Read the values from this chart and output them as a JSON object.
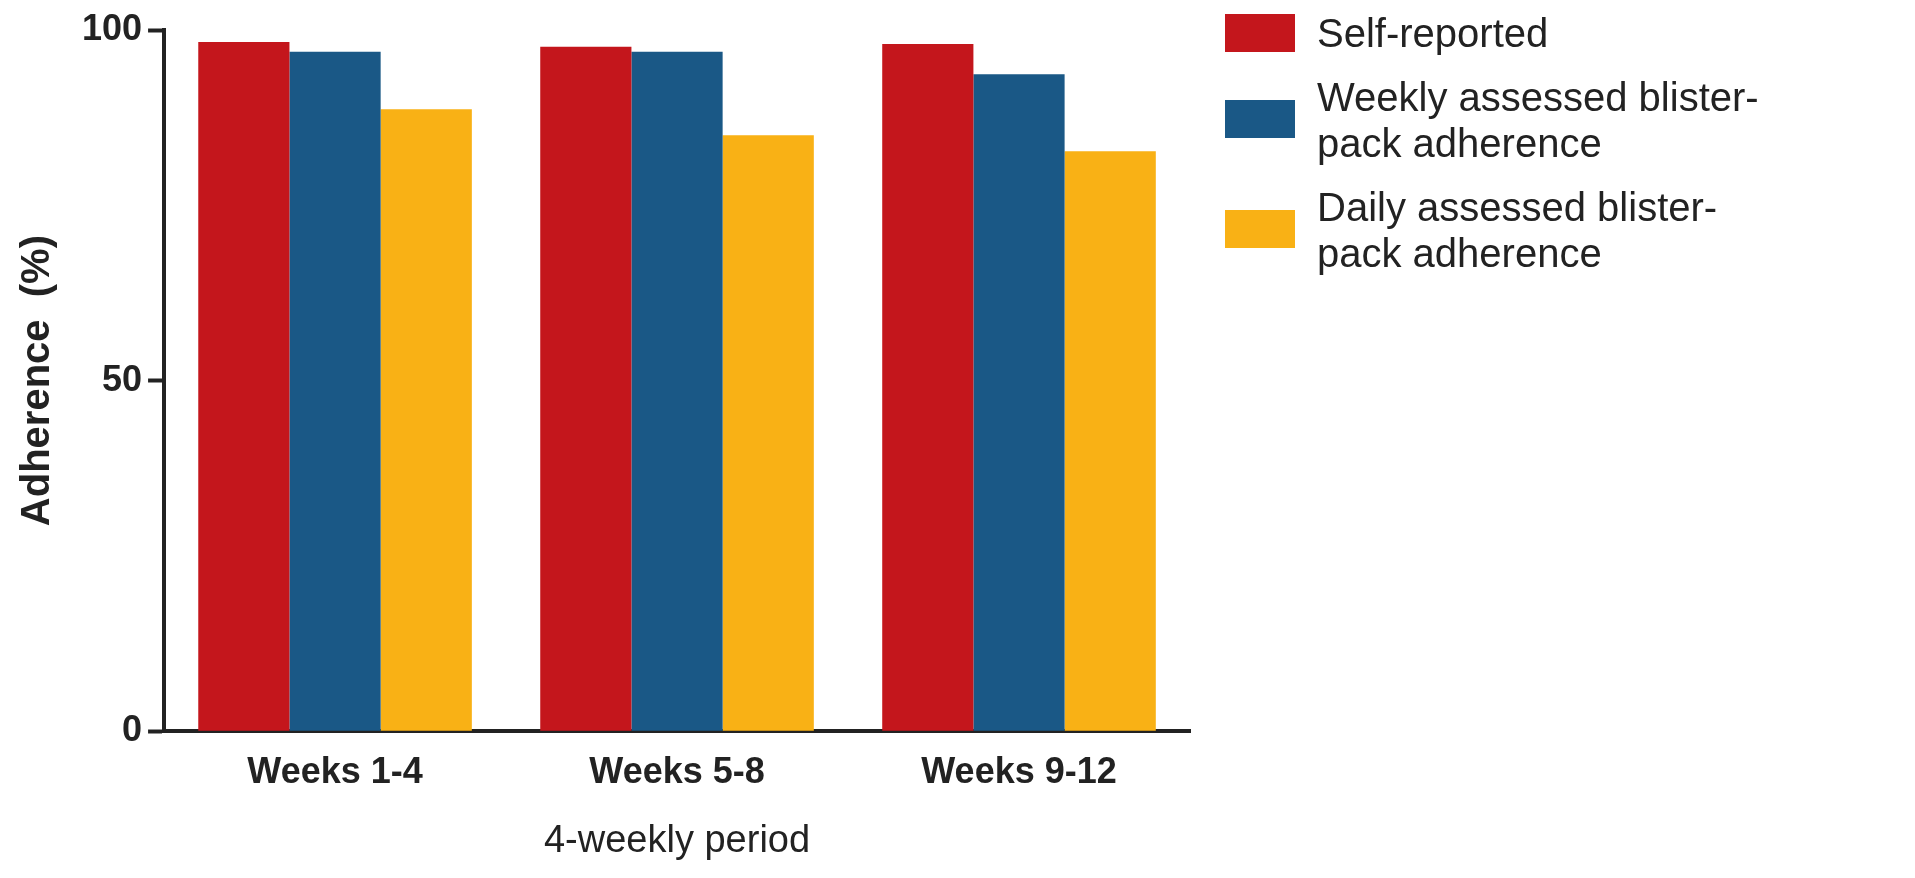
{
  "chart_data": {
    "type": "bar",
    "xlabel": "4-weekly period",
    "ylabel": "Adherence  (%)",
    "categories": [
      "Weeks 1-4",
      "Weeks 5-8",
      "Weeks 9-12"
    ],
    "series": [
      {
        "name": "Self-reported",
        "color": "#c4161c",
        "values": [
          98.3,
          97.6,
          98.0
        ]
      },
      {
        "name": "Weekly assessed blister-pack adherence",
        "color": "#1a5886",
        "values": [
          96.9,
          96.9,
          93.7
        ]
      },
      {
        "name": "Daily assessed blister-pack adherence",
        "color": "#f9b115",
        "values": [
          88.7,
          85.0,
          82.7
        ]
      }
    ],
    "ylim": [
      0,
      100
    ],
    "yticks": [
      0,
      50,
      100
    ],
    "grid": false,
    "legend": "right"
  }
}
